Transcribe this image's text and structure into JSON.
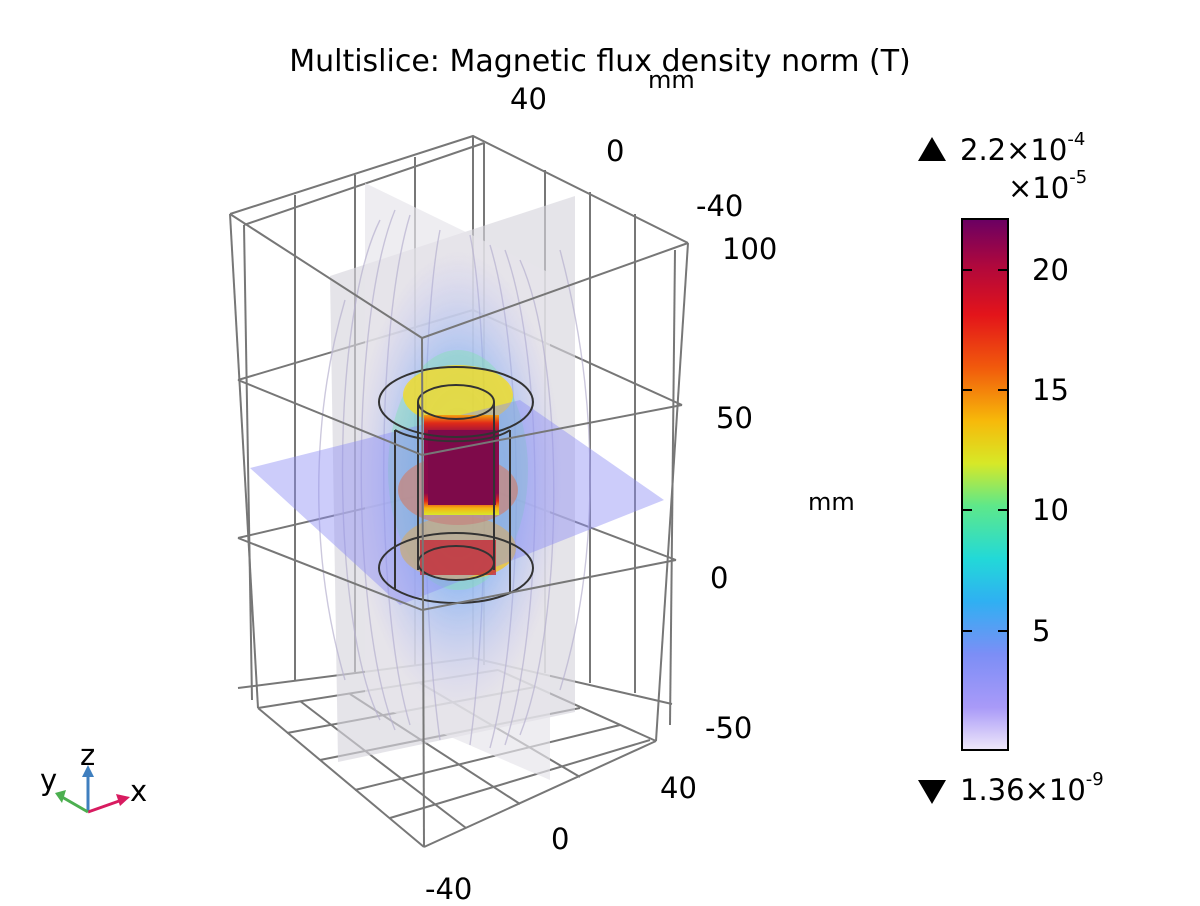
{
  "title": "Multislice: Magnetic flux density norm (T)",
  "axes": {
    "y_ticks": [
      "40",
      "0",
      "-40"
    ],
    "y_unit": "mm",
    "z_ticks": [
      "100",
      "50",
      "0",
      "-50"
    ],
    "z_unit": "mm",
    "x_ticks": [
      "40",
      "0",
      "-40"
    ]
  },
  "triad": {
    "x": "x",
    "y": "y",
    "z": "z",
    "colors": {
      "x": "#d81b60",
      "y": "#4caf50",
      "z": "#3f7fbf"
    }
  },
  "colorbar": {
    "max_label": "2.2×10",
    "max_exp": "-4",
    "scale_label": "×10",
    "scale_exp": "-5",
    "min_label": "1.36×10",
    "min_exp": "-9",
    "ticks": [
      "20",
      "15",
      "10",
      "5"
    ],
    "colormap": "rainbow-light"
  },
  "chart_data": {
    "type": "heatmap",
    "title": "Multislice: Magnetic flux density norm (T)",
    "quantity": "Magnetic flux density norm",
    "unit": "T",
    "color_range": [
      1.36e-09,
      0.00022
    ],
    "colorbar_scale": 1e-05,
    "colorbar_ticks": [
      5,
      10,
      15,
      20
    ],
    "axes_unit": "mm",
    "x_ticks": [
      40,
      0,
      -40
    ],
    "y_ticks": [
      40,
      0,
      -40
    ],
    "z_ticks": [
      100,
      50,
      0,
      -50
    ],
    "slices": [
      "xz-plane",
      "yz-plane",
      "xy-plane"
    ],
    "grid": true
  }
}
